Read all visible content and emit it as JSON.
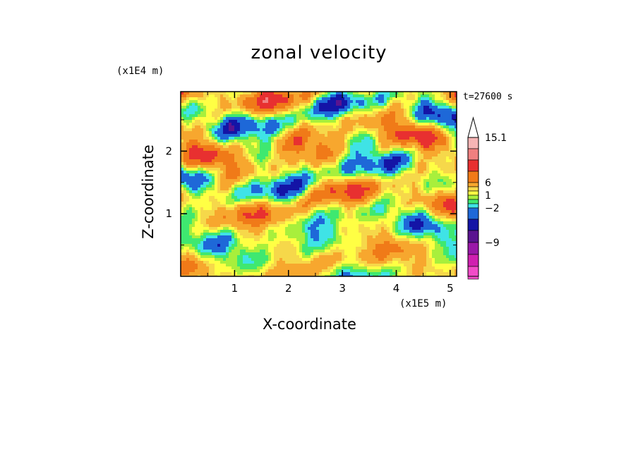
{
  "chart_data": {
    "type": "heatmap",
    "title": "zonal velocity",
    "xlabel": "X-coordinate",
    "ylabel": "Z-coordinate",
    "x_unit": "(x1E5 m)",
    "y_unit": "(x1E4 m)",
    "time_label": "t=27600 s",
    "xlim": [
      0,
      5.12
    ],
    "ylim": [
      0,
      2.95
    ],
    "x_ticks": [
      "1",
      "2",
      "3",
      "4",
      "5"
    ],
    "y_ticks": [
      "1",
      "2"
    ],
    "colorbar": {
      "tick_labels": [
        "15.1",
        "6",
        "1",
        "−2",
        "−9"
      ],
      "levels": [
        15.1,
        12,
        9,
        6,
        4,
        2,
        1,
        0,
        -1,
        -2,
        -3,
        -5,
        -7,
        -9,
        -12,
        -15
      ],
      "colors": [
        "#ffffff",
        "#f6b5b5",
        "#f08080",
        "#e83030",
        "#f07a18",
        "#f7a72e",
        "#f6d84a",
        "#ffff44",
        "#a8ef3c",
        "#3fe870",
        "#3fe3e6",
        "#1e68d8",
        "#1414a6",
        "#5a1490",
        "#9a18a8",
        "#d020b0",
        "#f24cc8"
      ]
    },
    "pattern_note": ""
  }
}
